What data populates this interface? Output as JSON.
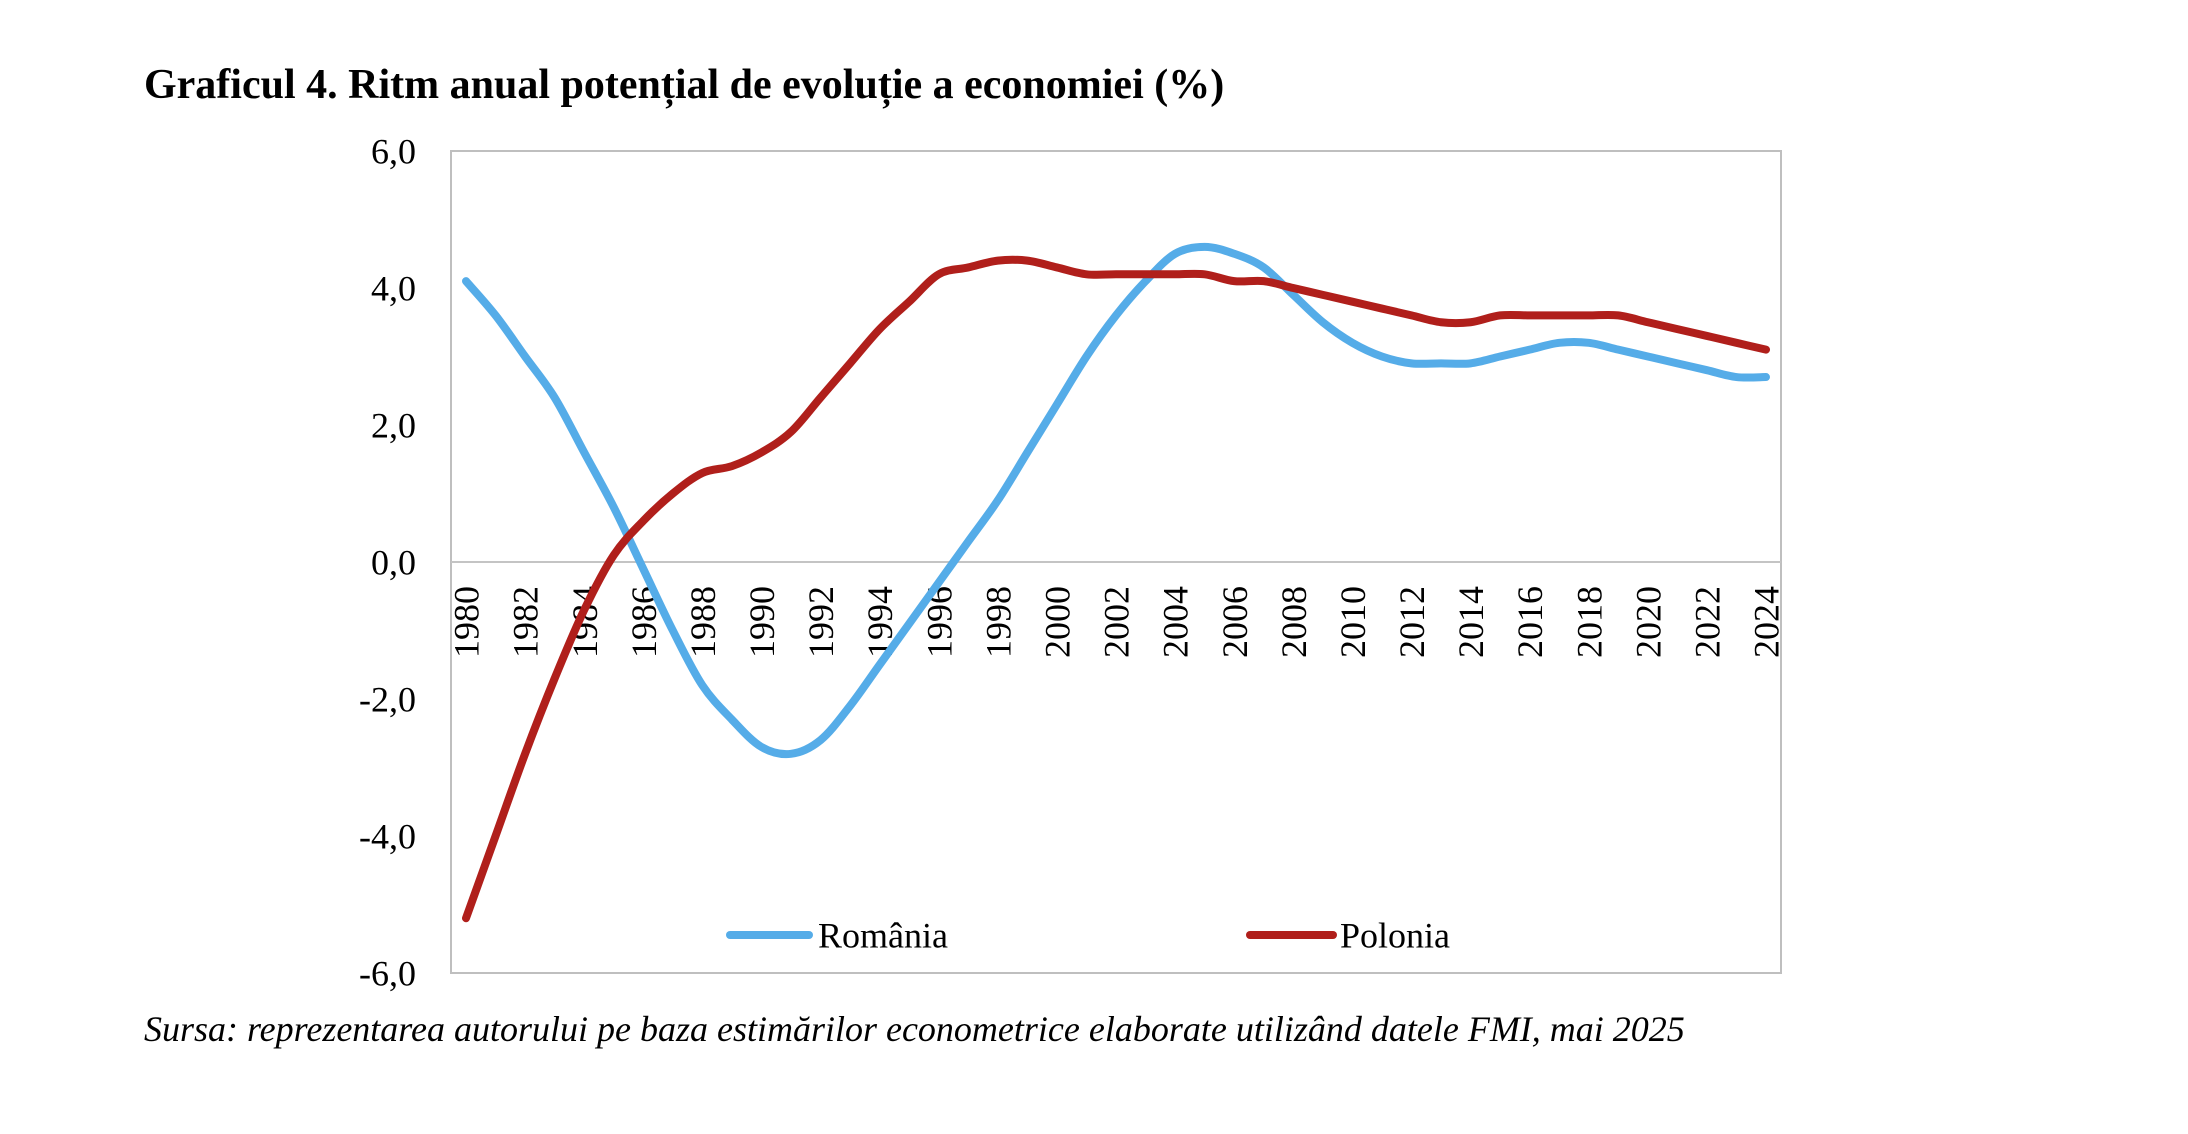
{
  "source": "Sursa: reprezentarea autorului pe baza estimărilor econometrice elaborate utilizând datele FMI, mai 2025",
  "chart_data": {
    "type": "line",
    "title": "Graficul 4. Ritm anual potențial de evoluție a economiei (%)",
    "xlabel": "",
    "ylabel": "",
    "xlim": [
      1980,
      2024
    ],
    "ylim": [
      -6,
      6
    ],
    "grid": false,
    "legend_position": "bottom-inside",
    "y_ticks": [
      6,
      4,
      2,
      0,
      -2,
      -4,
      -6
    ],
    "y_tick_labels": [
      "6,0",
      "4,0",
      "2,0",
      "0,0",
      "-2,0",
      "-4,0",
      "-6,0"
    ],
    "x_ticks": [
      1980,
      1982,
      1984,
      1986,
      1988,
      1990,
      1992,
      1994,
      1996,
      1998,
      2000,
      2002,
      2004,
      2006,
      2008,
      2010,
      2012,
      2014,
      2016,
      2018,
      2020,
      2022,
      2024
    ],
    "x_tick_labels": [
      "1980",
      "1982",
      "1984",
      "1986",
      "1988",
      "1990",
      "1992",
      "1994",
      "1996",
      "1998",
      "2000",
      "2002",
      "2004",
      "2006",
      "2008",
      "2010",
      "2012",
      "2014",
      "2016",
      "2018",
      "2020",
      "2022",
      "2024"
    ],
    "x": [
      1980,
      1981,
      1982,
      1983,
      1984,
      1985,
      1986,
      1987,
      1988,
      1989,
      1990,
      1991,
      1992,
      1993,
      1994,
      1995,
      1996,
      1997,
      1998,
      1999,
      2000,
      2001,
      2002,
      2003,
      2004,
      2005,
      2006,
      2007,
      2008,
      2009,
      2010,
      2011,
      2012,
      2013,
      2014,
      2015,
      2016,
      2017,
      2018,
      2019,
      2020,
      2021,
      2022,
      2023,
      2024
    ],
    "series": [
      {
        "name": "România",
        "color": "#55ACE8",
        "values": [
          4.1,
          3.6,
          3.0,
          2.4,
          1.6,
          0.8,
          -0.1,
          -1.0,
          -1.8,
          -2.3,
          -2.7,
          -2.8,
          -2.6,
          -2.1,
          -1.5,
          -0.9,
          -0.3,
          0.3,
          0.9,
          1.6,
          2.3,
          3.0,
          3.6,
          4.1,
          4.5,
          4.6,
          4.5,
          4.3,
          3.9,
          3.5,
          3.2,
          3.0,
          2.9,
          2.9,
          2.9,
          3.0,
          3.1,
          3.2,
          3.2,
          3.1,
          3.0,
          2.9,
          2.8,
          2.7,
          2.7
        ]
      },
      {
        "name": "Polonia",
        "color": "#B01F1B",
        "values": [
          -5.2,
          -4.0,
          -2.8,
          -1.7,
          -0.7,
          0.1,
          0.6,
          1.0,
          1.3,
          1.4,
          1.6,
          1.9,
          2.4,
          2.9,
          3.4,
          3.8,
          4.2,
          4.3,
          4.4,
          4.4,
          4.3,
          4.2,
          4.2,
          4.2,
          4.2,
          4.2,
          4.1,
          4.1,
          4.0,
          3.9,
          3.8,
          3.7,
          3.6,
          3.5,
          3.5,
          3.6,
          3.6,
          3.6,
          3.6,
          3.6,
          3.5,
          3.4,
          3.3,
          3.2,
          3.1
        ]
      }
    ]
  }
}
